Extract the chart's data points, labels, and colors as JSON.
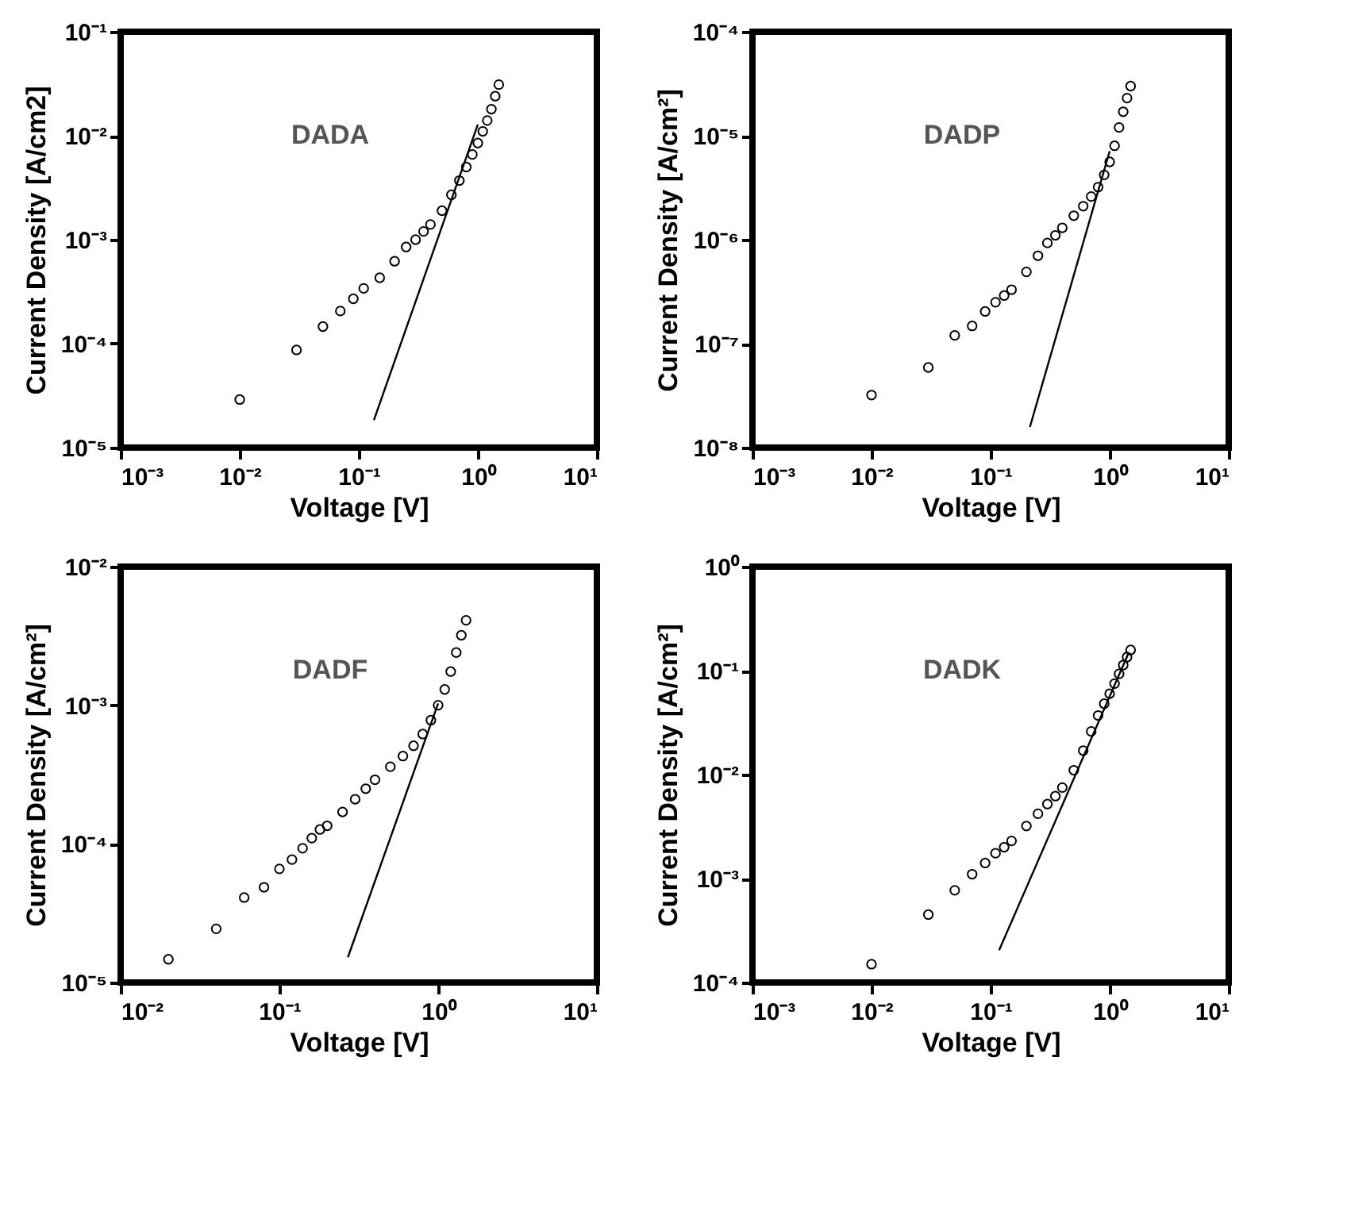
{
  "chart_data": [
    {
      "type": "scatter",
      "xlabel": "Voltage [V]",
      "ylabel": "Current Density [A/cm2]",
      "annotations": [
        "DADA"
      ],
      "log": "xy",
      "xlim": [
        0.001,
        10
      ],
      "ylim": [
        1e-05,
        0.1
      ],
      "xticks": [
        {
          "value": 0.001,
          "label": "10⁻³"
        },
        {
          "value": 0.01,
          "label": "10⁻²"
        },
        {
          "value": 0.1,
          "label": "10⁻¹"
        },
        {
          "value": 1,
          "label": "10⁰"
        },
        {
          "value": 10,
          "label": "10¹"
        }
      ],
      "yticks": [
        {
          "value": 1e-05,
          "label": "10⁻⁵"
        },
        {
          "value": 0.0001,
          "label": "10⁻⁴"
        },
        {
          "value": 0.001,
          "label": "10⁻³"
        },
        {
          "value": 0.01,
          "label": "10⁻²"
        },
        {
          "value": 0.1,
          "label": "10⁻¹"
        }
      ],
      "series": [
        {
          "type": "scatter",
          "color": "#000000",
          "x": [
            0.01,
            0.03,
            0.05,
            0.07,
            0.09,
            0.11,
            0.15,
            0.2,
            0.25,
            0.3,
            0.35,
            0.4,
            0.5,
            0.6,
            0.7,
            0.8,
            0.9,
            1.0,
            1.1,
            1.2,
            1.3,
            1.4,
            1.5
          ],
          "marker": "circle",
          "values": [
            2.9e-05,
            8.7e-05,
            0.000146,
            0.000206,
            0.00027,
            0.00034,
            0.00043,
            0.00062,
            0.00085,
            0.001,
            0.0012,
            0.0014,
            0.0019,
            0.0027,
            0.0037,
            0.005,
            0.0066,
            0.0085,
            0.011,
            0.014,
            0.018,
            0.024,
            0.031
          ]
        },
        {
          "type": "line",
          "color": "#000000",
          "x": [
            0.134,
            1.0
          ],
          "values": [
            1.84e-05,
            0.0128
          ]
        }
      ]
    },
    {
      "type": "scatter",
      "xlabel": "Voltage [V]",
      "ylabel": "Current Density [A/cm²]",
      "annotations": [
        "DADP"
      ],
      "log": "xy",
      "xlim": [
        0.001,
        10
      ],
      "ylim": [
        1e-08,
        0.0001
      ],
      "xticks": [
        {
          "value": 0.001,
          "label": "10⁻³"
        },
        {
          "value": 0.01,
          "label": "10⁻²"
        },
        {
          "value": 0.1,
          "label": "10⁻¹"
        },
        {
          "value": 1,
          "label": "10⁰"
        },
        {
          "value": 10,
          "label": "10¹"
        }
      ],
      "yticks": [
        {
          "value": 1e-08,
          "label": "10⁻⁸"
        },
        {
          "value": 1e-07,
          "label": "10⁻⁷"
        },
        {
          "value": 1e-06,
          "label": "10⁻⁶"
        },
        {
          "value": 1e-05,
          "label": "10⁻⁵"
        },
        {
          "value": 0.0001,
          "label": "10⁻⁴"
        }
      ],
      "series": [
        {
          "type": "scatter",
          "color": "#000000",
          "x": [
            0.01,
            0.03,
            0.05,
            0.07,
            0.09,
            0.11,
            0.13,
            0.15,
            0.2,
            0.25,
            0.3,
            0.35,
            0.4,
            0.5,
            0.6,
            0.7,
            0.8,
            0.9,
            1.0,
            1.1,
            1.2,
            1.3,
            1.4,
            1.5
          ],
          "marker": "circle",
          "values": [
            3.2e-08,
            5.9e-08,
            1.2e-07,
            1.48e-07,
            2.04e-07,
            2.5e-07,
            2.9e-07,
            3.3e-07,
            4.9e-07,
            7e-07,
            9.3e-07,
            1.1e-06,
            1.3e-06,
            1.7e-06,
            2.1e-06,
            2.6e-06,
            3.2e-06,
            4.2e-06,
            5.6e-06,
            8e-06,
            1.2e-05,
            1.7e-05,
            2.3e-05,
            3e-05
          ]
        },
        {
          "type": "line",
          "color": "#000000",
          "x": [
            0.214,
            1.0
          ],
          "values": [
            1.58e-08,
            7.1e-06
          ]
        }
      ]
    },
    {
      "type": "scatter",
      "xlabel": "Voltage [V]",
      "ylabel": "Current Density [A/cm²]",
      "annotations": [
        "DADF"
      ],
      "log": "xy",
      "xlim": [
        0.01,
        10
      ],
      "ylim": [
        1e-05,
        0.01
      ],
      "xticks": [
        {
          "value": 0.01,
          "label": "10⁻²"
        },
        {
          "value": 0.1,
          "label": "10⁻¹"
        },
        {
          "value": 1,
          "label": "10⁰"
        },
        {
          "value": 10,
          "label": "10¹"
        }
      ],
      "yticks": [
        {
          "value": 1e-05,
          "label": "10⁻⁵"
        },
        {
          "value": 0.0001,
          "label": "10⁻⁴"
        },
        {
          "value": 0.001,
          "label": "10⁻³"
        },
        {
          "value": 0.01,
          "label": "10⁻²"
        }
      ],
      "series": [
        {
          "type": "scatter",
          "color": "#000000",
          "x": [
            0.02,
            0.04,
            0.06,
            0.08,
            0.1,
            0.12,
            0.14,
            0.16,
            0.18,
            0.2,
            0.25,
            0.3,
            0.35,
            0.4,
            0.5,
            0.6,
            0.7,
            0.8,
            0.9,
            1.0,
            1.1,
            1.2,
            1.3,
            1.4,
            1.5
          ],
          "marker": "circle",
          "values": [
            1.47e-05,
            2.44e-05,
            4.1e-05,
            4.86e-05,
            6.6e-05,
            7.7e-05,
            9.3e-05,
            0.00011,
            0.000127,
            0.000135,
            0.00017,
            0.00021,
            0.00025,
            0.00029,
            0.00036,
            0.00043,
            0.00051,
            0.00062,
            0.00078,
            0.001,
            0.0013,
            0.00175,
            0.0024,
            0.0032,
            0.0041
          ]
        },
        {
          "type": "line",
          "color": "#000000",
          "x": [
            0.27,
            1.0
          ],
          "values": [
            1.52e-05,
            0.00103
          ]
        }
      ]
    },
    {
      "type": "scatter",
      "xlabel": "Voltage [V]",
      "ylabel": "Current Density [A/cm²]",
      "annotations": [
        "DADK"
      ],
      "log": "xy",
      "xlim": [
        0.001,
        10
      ],
      "ylim": [
        0.0001,
        1
      ],
      "xticks": [
        {
          "value": 0.001,
          "label": "10⁻³"
        },
        {
          "value": 0.01,
          "label": "10⁻²"
        },
        {
          "value": 0.1,
          "label": "10⁻¹"
        },
        {
          "value": 1,
          "label": "10⁰"
        },
        {
          "value": 10,
          "label": "10¹"
        }
      ],
      "yticks": [
        {
          "value": 0.0001,
          "label": "10⁻⁴"
        },
        {
          "value": 0.001,
          "label": "10⁻³"
        },
        {
          "value": 0.01,
          "label": "10⁻²"
        },
        {
          "value": 0.1,
          "label": "10⁻¹"
        },
        {
          "value": 1,
          "label": "10⁰"
        }
      ],
      "series": [
        {
          "type": "scatter",
          "color": "#000000",
          "x": [
            0.01,
            0.03,
            0.05,
            0.07,
            0.09,
            0.11,
            0.13,
            0.15,
            0.2,
            0.25,
            0.3,
            0.35,
            0.4,
            0.5,
            0.6,
            0.7,
            0.8,
            0.9,
            1.0,
            1.1,
            1.2,
            1.3,
            1.4,
            1.5
          ],
          "marker": "circle",
          "values": [
            0.00015,
            0.00045,
            0.00077,
            0.0011,
            0.00141,
            0.00175,
            0.002,
            0.0023,
            0.0032,
            0.0042,
            0.0052,
            0.0062,
            0.0075,
            0.011,
            0.017,
            0.026,
            0.037,
            0.048,
            0.06,
            0.075,
            0.093,
            0.113,
            0.135,
            0.158
          ]
        },
        {
          "type": "line",
          "color": "#000000",
          "x": [
            0.118,
            1.45
          ],
          "values": [
            0.000205,
            0.15
          ]
        }
      ]
    }
  ]
}
